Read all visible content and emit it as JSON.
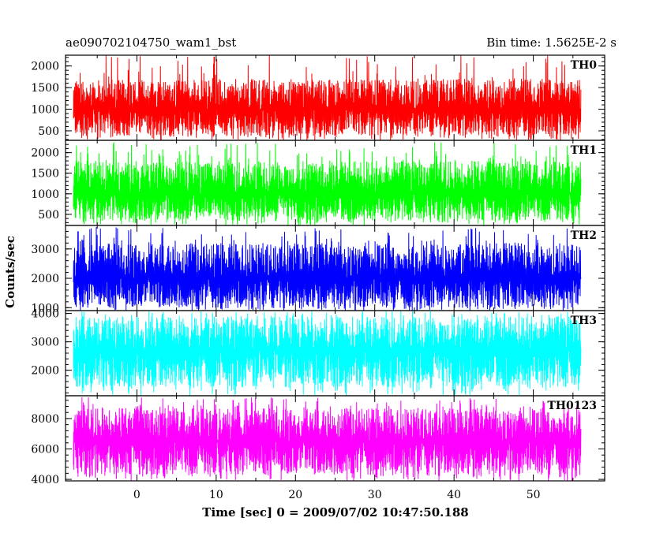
{
  "header": {
    "left_title": "ae090702104750_wam1_bst",
    "right_title": "Bin time: 1.5625E-2 s"
  },
  "chart_data": {
    "type": "line",
    "xlabel": "Time [sec] 0 = 2009/07/02 10:47:50.188",
    "ylabel": "Counts/sec",
    "xlim": [
      -9,
      59
    ],
    "x_ticks": [
      0,
      10,
      20,
      30,
      40,
      50
    ],
    "x_range_data": [
      -8,
      56
    ],
    "panels": [
      {
        "name": "TH0",
        "color": "#ff0000",
        "ylim": [
          280,
          2250
        ],
        "y_ticks": [
          500,
          1000,
          1500,
          2000
        ],
        "mean": 1000,
        "low": 380,
        "high": 1700,
        "spike_max": 2250
      },
      {
        "name": "TH1",
        "color": "#00ff00",
        "ylim": [
          230,
          2300
        ],
        "y_ticks": [
          500,
          1000,
          1500,
          2000
        ],
        "mean": 1000,
        "low": 350,
        "high": 1800,
        "spike_max": 2250
      },
      {
        "name": "TH2",
        "color": "#0000ff",
        "ylim": [
          900,
          3800
        ],
        "y_ticks": [
          1000,
          2000,
          3000
        ],
        "mean": 2000,
        "low": 1000,
        "high": 3200,
        "spike_max": 3750
      },
      {
        "name": "TH3",
        "color": "#00ffff",
        "ylim": [
          1100,
          4100
        ],
        "y_ticks": [
          2000,
          3000,
          4000
        ],
        "mean": 2700,
        "low": 1400,
        "high": 3900,
        "spike_max": 4100
      },
      {
        "name": "TH0123",
        "color": "#ff00ff",
        "ylim": [
          3900,
          9500
        ],
        "y_ticks": [
          4000,
          6000,
          8000
        ],
        "mean": 6500,
        "low": 4300,
        "high": 8700,
        "spike_max": 9400
      }
    ]
  }
}
